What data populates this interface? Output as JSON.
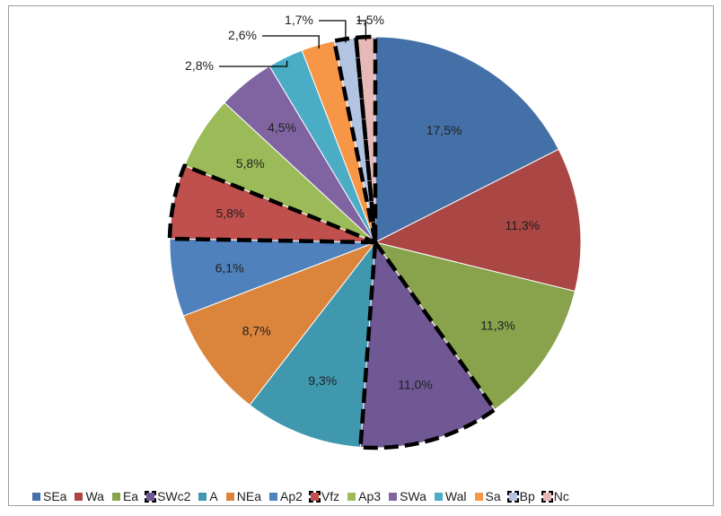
{
  "chart_data": {
    "type": "pie",
    "title": "",
    "categories": [
      "SEa",
      "Wa",
      "Ea",
      "SWc2",
      "A",
      "NEa",
      "Ap2",
      "Vfz",
      "Ap3",
      "SWa",
      "Wal",
      "Sa",
      "Bp",
      "Nc"
    ],
    "values": [
      17.5,
      11.3,
      11.3,
      11.0,
      9.3,
      8.7,
      6.1,
      5.8,
      5.8,
      4.5,
      2.8,
      2.6,
      1.7,
      1.5
    ],
    "labels": [
      "17,5%",
      "11,3%",
      "11,3%",
      "11,0%",
      "9,3%",
      "8,7%",
      "6,1%",
      "5,8%",
      "5,8%",
      "4,5%",
      "2,8%",
      "2,6%",
      "1,7%",
      "1,5%"
    ],
    "colors": [
      "#4470A8",
      "#AA4644",
      "#88A34C",
      "#6F5893",
      "#3F98AE",
      "#DB853C",
      "#4F81BD",
      "#C0504D",
      "#9BBB59",
      "#8064A2",
      "#4BACC6",
      "#F79646",
      "#B3C3E2",
      "#E6B9B8"
    ],
    "highlighted": [
      "SWc2",
      "Vfz",
      "Bp",
      "Nc"
    ],
    "legend_position": "bottom"
  }
}
